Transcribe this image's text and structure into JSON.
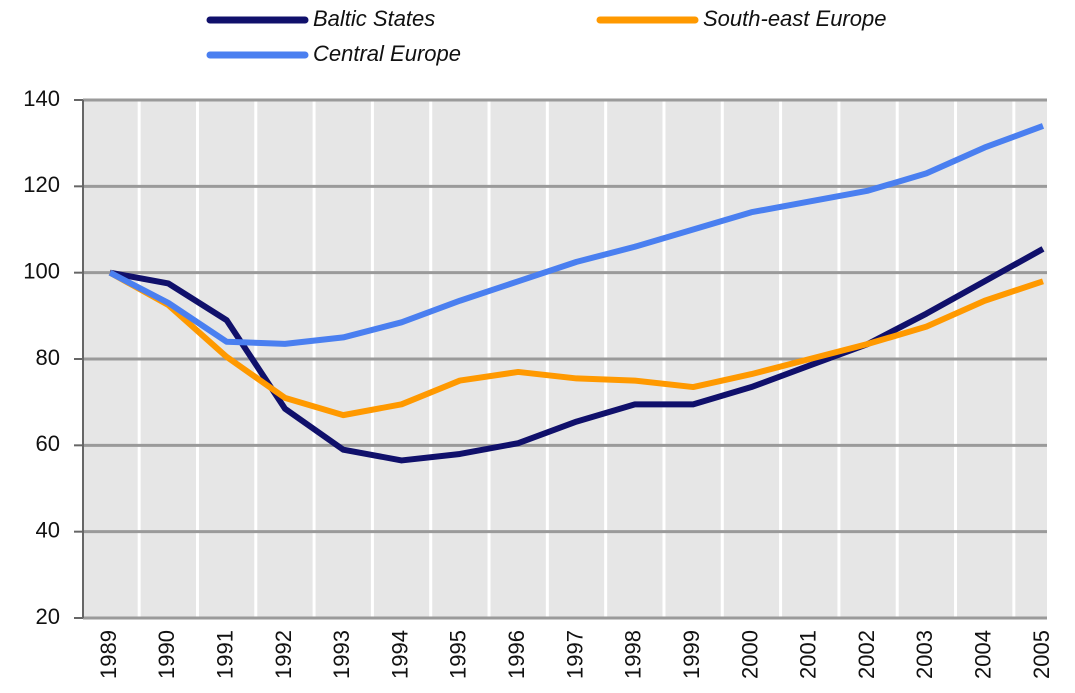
{
  "chart_data": {
    "type": "line",
    "categories": [
      "1989",
      "1990",
      "1991",
      "1992",
      "1993",
      "1994",
      "1995",
      "1996",
      "1997",
      "1998",
      "1999",
      "2000",
      "2001",
      "2002",
      "2003",
      "2004",
      "2005"
    ],
    "series": [
      {
        "name": "Baltic States",
        "color": "#10106b",
        "values": [
          100,
          97.5,
          89,
          68.5,
          59,
          56.5,
          58,
          60.5,
          65.5,
          69.5,
          69.5,
          73.5,
          78.5,
          83.5,
          90.5,
          98,
          105.5
        ]
      },
      {
        "name": "South-east Europe",
        "color": "#ff9900",
        "values": [
          100,
          92.5,
          80.5,
          71,
          67,
          69.5,
          75,
          77,
          75.5,
          75,
          73.5,
          76.5,
          80,
          83.5,
          87.5,
          93.5,
          98
        ]
      },
      {
        "name": "Central Europe",
        "color": "#4a7ff0",
        "values": [
          100,
          93,
          84,
          83.5,
          85,
          88.5,
          93.5,
          98,
          102.5,
          106,
          110,
          114,
          116.5,
          119,
          123,
          129,
          134
        ]
      }
    ],
    "ylim": [
      20,
      140
    ],
    "yticks": [
      20,
      40,
      60,
      80,
      100,
      120,
      140
    ],
    "grid": true,
    "legend": "top"
  }
}
